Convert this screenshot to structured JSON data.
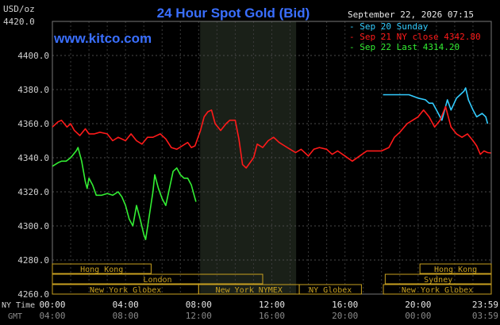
{
  "chart_data": {
    "type": "line",
    "title": "24 Hour Spot Gold (Bid)",
    "brand": "www.kitco.com",
    "timestamp": "September 22, 2026 07:15",
    "ylabel": "USD/oz",
    "ylim": [
      4260,
      4420
    ],
    "yticks": [
      4260,
      4280,
      4300,
      4320,
      4340,
      4360,
      4380,
      4400,
      4420
    ],
    "ytick_labels": [
      "4260.0",
      "4280.0",
      "4300.0",
      "4320.0",
      "4340.0",
      "4360.0",
      "4380.0",
      "4400.0",
      "4420.0"
    ],
    "xlim": [
      0,
      24
    ],
    "xticks": [
      0,
      4,
      8,
      12,
      16,
      20,
      23.983
    ],
    "xtick_labels_ny": [
      "00:00",
      "04:00",
      "08:00",
      "12:00",
      "16:00",
      "20:00",
      "23:59"
    ],
    "xtick_labels_gmt": [
      "04:00",
      "08:00",
      "12:00",
      "16:00",
      "20:00",
      "00:00",
      "03:59"
    ],
    "x_row_labels": {
      "ny": "NY Time",
      "gmt": "GMT"
    },
    "shaded_range": [
      8.08,
      13.33
    ],
    "legend": [
      {
        "label": "Sep 20 Sunday",
        "color": "#33ccff"
      },
      {
        "label": "Sep 21 NY close 4342.80",
        "color": "#ff1a1a"
      },
      {
        "label": "Sep 22 Last 4314.20",
        "color": "#33ee33"
      }
    ],
    "series": [
      {
        "name": "Sep 20 Sunday",
        "color": "#33ccff",
        "points": [
          [
            18.08,
            4377
          ],
          [
            18.6,
            4377
          ],
          [
            19.0,
            4377
          ],
          [
            19.5,
            4377
          ],
          [
            20.0,
            4375
          ],
          [
            20.4,
            4374
          ],
          [
            20.6,
            4372
          ],
          [
            20.8,
            4372
          ],
          [
            21.0,
            4368
          ],
          [
            21.3,
            4362
          ],
          [
            21.6,
            4374
          ],
          [
            21.8,
            4368
          ],
          [
            22.1,
            4375
          ],
          [
            22.3,
            4377
          ],
          [
            22.5,
            4379
          ],
          [
            22.6,
            4381
          ],
          [
            22.75,
            4374
          ],
          [
            23.0,
            4368
          ],
          [
            23.2,
            4364
          ],
          [
            23.5,
            4366
          ],
          [
            23.7,
            4364
          ],
          [
            23.8,
            4360
          ]
        ]
      },
      {
        "name": "Sep 21 NY close 4342.80",
        "color": "#ff1a1a",
        "points": [
          [
            0,
            4358
          ],
          [
            0.3,
            4361
          ],
          [
            0.5,
            4362
          ],
          [
            0.8,
            4358
          ],
          [
            1.0,
            4360
          ],
          [
            1.2,
            4356
          ],
          [
            1.5,
            4353
          ],
          [
            1.8,
            4357
          ],
          [
            2.0,
            4354
          ],
          [
            2.3,
            4354
          ],
          [
            2.6,
            4355
          ],
          [
            3.0,
            4354
          ],
          [
            3.3,
            4350
          ],
          [
            3.6,
            4352
          ],
          [
            4.0,
            4350
          ],
          [
            4.3,
            4354
          ],
          [
            4.6,
            4350
          ],
          [
            4.9,
            4348
          ],
          [
            5.2,
            4352
          ],
          [
            5.5,
            4352
          ],
          [
            5.9,
            4354
          ],
          [
            6.2,
            4351
          ],
          [
            6.5,
            4346
          ],
          [
            6.8,
            4345
          ],
          [
            7.1,
            4347
          ],
          [
            7.4,
            4349
          ],
          [
            7.6,
            4346
          ],
          [
            7.8,
            4347
          ],
          [
            8.1,
            4356
          ],
          [
            8.3,
            4364
          ],
          [
            8.5,
            4367
          ],
          [
            8.7,
            4368
          ],
          [
            8.9,
            4360
          ],
          [
            9.2,
            4356
          ],
          [
            9.5,
            4360
          ],
          [
            9.7,
            4362
          ],
          [
            10.0,
            4362
          ],
          [
            10.2,
            4351
          ],
          [
            10.4,
            4336
          ],
          [
            10.6,
            4334
          ],
          [
            10.8,
            4337
          ],
          [
            11.0,
            4340
          ],
          [
            11.2,
            4348
          ],
          [
            11.5,
            4346
          ],
          [
            11.8,
            4350
          ],
          [
            12.1,
            4352
          ],
          [
            12.4,
            4349
          ],
          [
            12.7,
            4347
          ],
          [
            13.0,
            4345
          ],
          [
            13.3,
            4343
          ],
          [
            13.6,
            4345
          ],
          [
            14.0,
            4341
          ],
          [
            14.3,
            4345
          ],
          [
            14.6,
            4346
          ],
          [
            15.0,
            4345
          ],
          [
            15.3,
            4342
          ],
          [
            15.6,
            4344
          ],
          [
            16.0,
            4341
          ],
          [
            16.4,
            4338
          ],
          [
            16.8,
            4341
          ],
          [
            17.2,
            4344
          ],
          [
            17.6,
            4344
          ],
          [
            18.0,
            4344
          ],
          [
            18.4,
            4346
          ],
          [
            18.7,
            4352
          ],
          [
            19.0,
            4355
          ],
          [
            19.4,
            4360
          ],
          [
            19.7,
            4362
          ],
          [
            20.0,
            4364
          ],
          [
            20.3,
            4368
          ],
          [
            20.6,
            4364
          ],
          [
            20.9,
            4358
          ],
          [
            21.2,
            4362
          ],
          [
            21.5,
            4370
          ],
          [
            21.8,
            4358
          ],
          [
            22.1,
            4354
          ],
          [
            22.4,
            4352
          ],
          [
            22.7,
            4354
          ],
          [
            23.0,
            4350
          ],
          [
            23.2,
            4347
          ],
          [
            23.4,
            4342
          ],
          [
            23.6,
            4344
          ],
          [
            23.8,
            4343
          ],
          [
            23.98,
            4342.8
          ]
        ]
      },
      {
        "name": "Sep 22 Last 4314.20",
        "color": "#33ee33",
        "points": [
          [
            0,
            4335
          ],
          [
            0.3,
            4337
          ],
          [
            0.5,
            4338
          ],
          [
            0.75,
            4338
          ],
          [
            1.0,
            4340
          ],
          [
            1.3,
            4344
          ],
          [
            1.4,
            4346
          ],
          [
            1.6,
            4338
          ],
          [
            1.8,
            4326
          ],
          [
            1.9,
            4322
          ],
          [
            2.0,
            4328
          ],
          [
            2.2,
            4324
          ],
          [
            2.4,
            4318
          ],
          [
            2.7,
            4318
          ],
          [
            3.0,
            4319
          ],
          [
            3.3,
            4318
          ],
          [
            3.6,
            4320
          ],
          [
            3.8,
            4317
          ],
          [
            4.0,
            4312
          ],
          [
            4.2,
            4304
          ],
          [
            4.4,
            4300
          ],
          [
            4.6,
            4312
          ],
          [
            4.8,
            4304
          ],
          [
            5.0,
            4295
          ],
          [
            5.1,
            4292
          ],
          [
            5.3,
            4306
          ],
          [
            5.5,
            4320
          ],
          [
            5.6,
            4330
          ],
          [
            5.8,
            4322
          ],
          [
            6.0,
            4316
          ],
          [
            6.2,
            4312
          ],
          [
            6.4,
            4322
          ],
          [
            6.6,
            4332
          ],
          [
            6.8,
            4334
          ],
          [
            7.0,
            4330
          ],
          [
            7.2,
            4328
          ],
          [
            7.4,
            4328
          ],
          [
            7.6,
            4324
          ],
          [
            7.75,
            4318
          ],
          [
            7.85,
            4314.2
          ]
        ]
      }
    ]
  },
  "sessions": [
    {
      "label": "Hong Kong",
      "start": 0,
      "end": 5.4,
      "row": 0
    },
    {
      "label": "Hong Kong",
      "start": 20.1,
      "end": 24,
      "row": 0
    },
    {
      "label": "London",
      "start": 0,
      "end": 11.5,
      "row": 1
    },
    {
      "label": "Sydney",
      "start": 18.2,
      "end": 24,
      "row": 1
    },
    {
      "label": "New York Globex",
      "start": 0,
      "end": 8.0,
      "row": 2
    },
    {
      "label": "New York NYMEX",
      "start": 8.0,
      "end": 13.5,
      "row": 2
    },
    {
      "label": "NY Globex",
      "start": 13.5,
      "end": 16.9,
      "row": 2
    },
    {
      "label": "New York Globex",
      "start": 18.1,
      "end": 24,
      "row": 2
    }
  ]
}
